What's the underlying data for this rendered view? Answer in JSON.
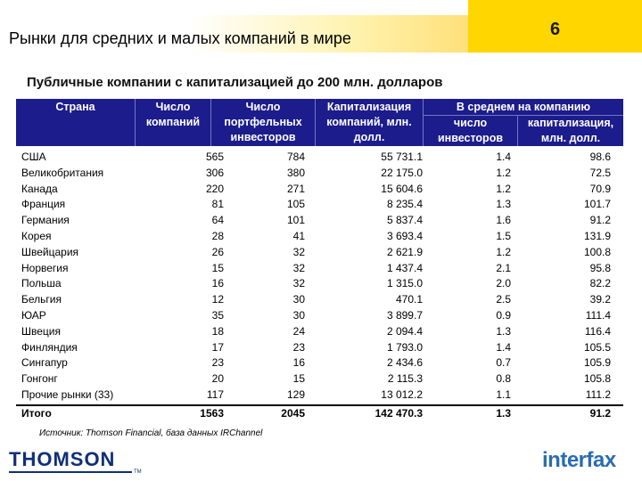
{
  "header": {
    "title": "Рынки для средних и малых компаний в мире",
    "page_number": "6"
  },
  "subtitle": "Публичные компании с капитализацией до 200 млн. долларов",
  "table": {
    "columns": {
      "country": "Страна",
      "companies": "Число компаний",
      "investors": "Число портфельных инвесторов",
      "cap": "Капитализация компаний, млн. долл.",
      "avg_group": "В среднем на компанию",
      "avg_investors": "число инвесторов",
      "avg_cap": "капитализация, млн. долл."
    },
    "rows": [
      {
        "country": "США",
        "companies": "565",
        "investors": "784",
        "cap": "55 731.1",
        "avg_investors": "1.4",
        "avg_cap": "98.6"
      },
      {
        "country": "Великобритания",
        "companies": "306",
        "investors": "380",
        "cap": "22 175.0",
        "avg_investors": "1.2",
        "avg_cap": "72.5"
      },
      {
        "country": "Канада",
        "companies": "220",
        "investors": "271",
        "cap": "15 604.6",
        "avg_investors": "1.2",
        "avg_cap": "70.9"
      },
      {
        "country": "Франция",
        "companies": "81",
        "investors": "105",
        "cap": "8 235.4",
        "avg_investors": "1.3",
        "avg_cap": "101.7"
      },
      {
        "country": "Германия",
        "companies": "64",
        "investors": "101",
        "cap": "5 837.4",
        "avg_investors": "1.6",
        "avg_cap": "91.2"
      },
      {
        "country": "Корея",
        "companies": "28",
        "investors": "41",
        "cap": "3 693.4",
        "avg_investors": "1.5",
        "avg_cap": "131.9"
      },
      {
        "country": "Швейцария",
        "companies": "26",
        "investors": "32",
        "cap": "2 621.9",
        "avg_investors": "1.2",
        "avg_cap": "100.8"
      },
      {
        "country": "Норвегия",
        "companies": "15",
        "investors": "32",
        "cap": "1 437.4",
        "avg_investors": "2.1",
        "avg_cap": "95.8"
      },
      {
        "country": "Польша",
        "companies": "16",
        "investors": "32",
        "cap": "1 315.0",
        "avg_investors": "2.0",
        "avg_cap": "82.2"
      },
      {
        "country": "Бельгия",
        "companies": "12",
        "investors": "30",
        "cap": "470.1",
        "avg_investors": "2.5",
        "avg_cap": "39.2"
      },
      {
        "country": "ЮАР",
        "companies": "35",
        "investors": "30",
        "cap": "3 899.7",
        "avg_investors": "0.9",
        "avg_cap": "111.4"
      },
      {
        "country": "Швеция",
        "companies": "18",
        "investors": "24",
        "cap": "2 094.4",
        "avg_investors": "1.3",
        "avg_cap": "116.4"
      },
      {
        "country": "Финляндия",
        "companies": "17",
        "investors": "23",
        "cap": "1 793.0",
        "avg_investors": "1.4",
        "avg_cap": "105.5"
      },
      {
        "country": "Сингапур",
        "companies": "23",
        "investors": "16",
        "cap": "2 434.6",
        "avg_investors": "0.7",
        "avg_cap": "105.9"
      },
      {
        "country": "Гонгонг",
        "companies": "20",
        "investors": "15",
        "cap": "2 115.3",
        "avg_investors": "0.8",
        "avg_cap": "105.8"
      },
      {
        "country": "Прочие рынки (33)",
        "companies": "117",
        "investors": "129",
        "cap": "13 012.2",
        "avg_investors": "1.1",
        "avg_cap": "111.2"
      }
    ],
    "total": {
      "country": "Итого",
      "companies": "1563",
      "investors": "2045",
      "cap": "142 470.3",
      "avg_investors": "1.3",
      "avg_cap": "91.2"
    }
  },
  "source": "Источник: Thomson Financial, база данных IRChannel",
  "logos": {
    "left": "THOMSON",
    "left_tm": "TM",
    "right": "interfax"
  },
  "colors": {
    "header_bg": "#1c1c8c",
    "accent": "#ffd600"
  }
}
